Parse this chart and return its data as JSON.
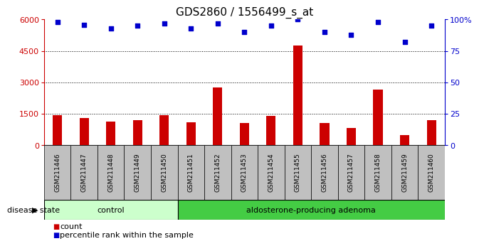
{
  "title": "GDS2860 / 1556499_s_at",
  "samples": [
    "GSM211446",
    "GSM211447",
    "GSM211448",
    "GSM211449",
    "GSM211450",
    "GSM211451",
    "GSM211452",
    "GSM211453",
    "GSM211454",
    "GSM211455",
    "GSM211456",
    "GSM211457",
    "GSM211458",
    "GSM211459",
    "GSM211460"
  ],
  "counts": [
    1430,
    1320,
    1150,
    1200,
    1430,
    1100,
    2750,
    1050,
    1420,
    4750,
    1050,
    820,
    2650,
    480,
    1200
  ],
  "percentiles": [
    98,
    96,
    93,
    95,
    97,
    93,
    97,
    90,
    95,
    100,
    90,
    88,
    98,
    82,
    95
  ],
  "control_count": 5,
  "ylim_left": [
    0,
    6000
  ],
  "ylim_right": [
    0,
    100
  ],
  "yticks_left": [
    0,
    1500,
    3000,
    4500,
    6000
  ],
  "yticks_right": [
    0,
    25,
    50,
    75,
    100
  ],
  "bar_color": "#cc0000",
  "dot_color": "#0000cc",
  "control_bg": "#ccffcc",
  "adenoma_bg": "#44cc44",
  "label_bg": "#c0c0c0",
  "legend_count_label": "count",
  "legend_pct_label": "percentile rank within the sample",
  "disease_state_label": "disease state",
  "control_label": "control",
  "adenoma_label": "aldosterone-producing adenoma",
  "title_fontsize": 11,
  "tick_fontsize": 8,
  "label_fontsize": 6.5,
  "disease_fontsize": 8,
  "legend_fontsize": 8
}
